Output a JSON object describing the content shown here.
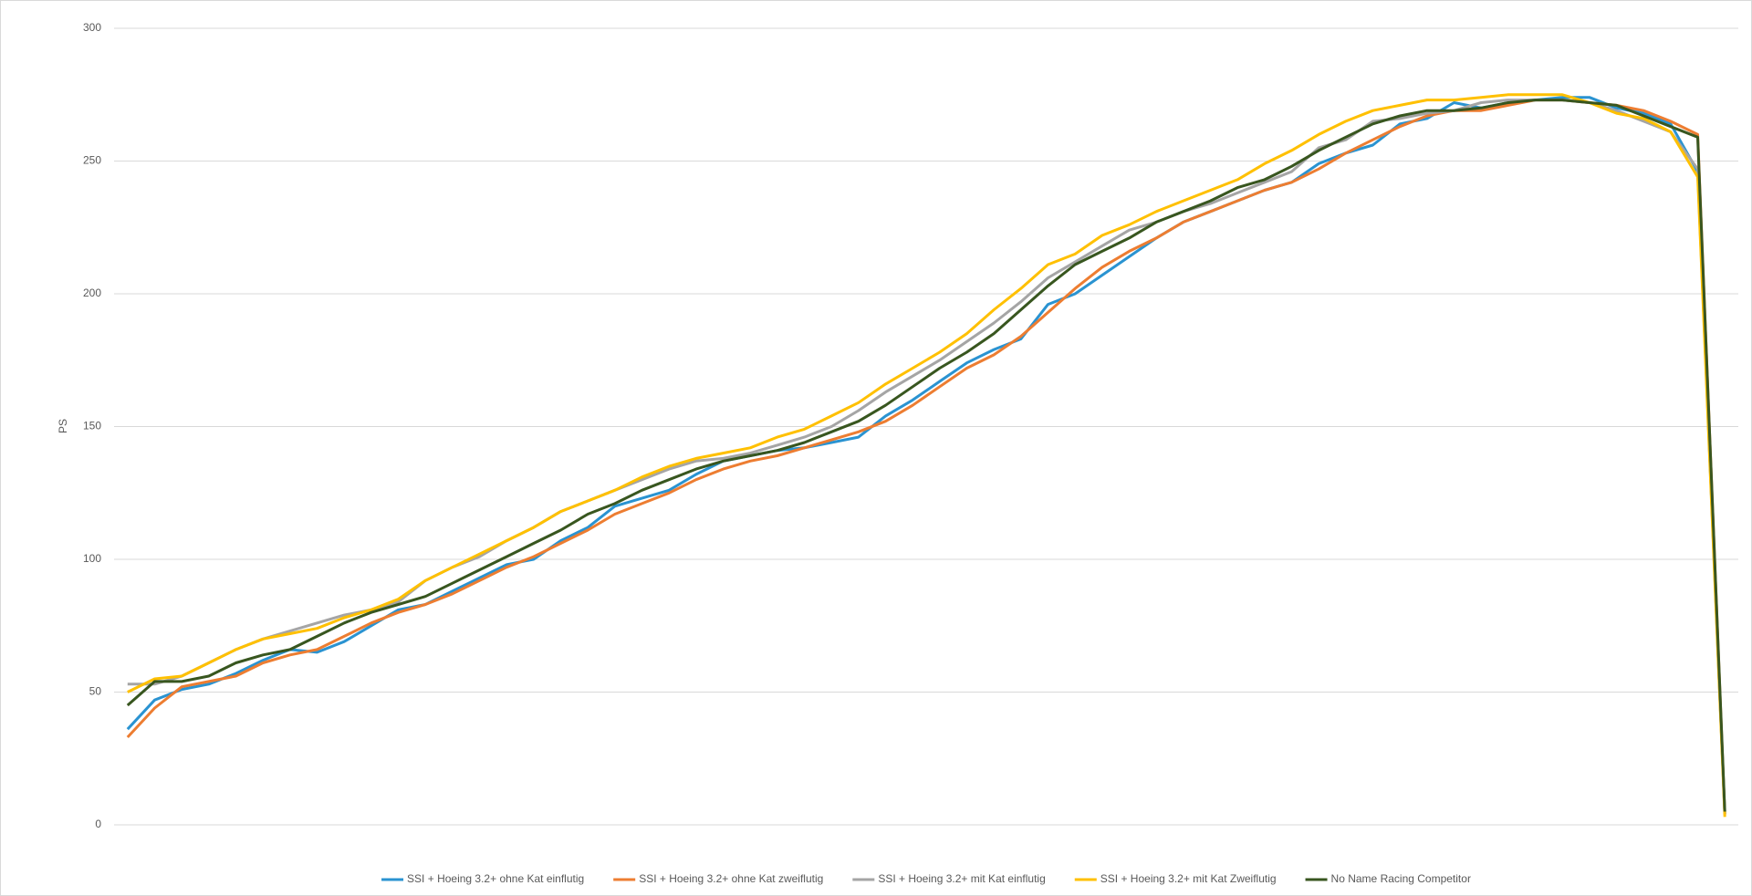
{
  "chart_data": {
    "type": "line",
    "y_label": "PS",
    "categories": [
      null,
      null,
      null,
      null,
      null,
      null,
      null,
      null,
      null,
      null,
      null,
      null,
      null,
      null,
      null,
      null,
      null,
      null,
      null,
      null,
      null,
      null,
      null,
      null,
      null,
      null,
      null,
      null,
      null,
      null,
      null,
      null,
      null,
      null,
      null,
      null,
      null,
      null,
      null,
      null,
      null,
      null,
      null,
      null,
      null,
      null,
      null,
      null,
      null,
      null,
      null,
      null,
      null,
      null,
      null,
      null,
      null,
      null,
      null,
      null
    ],
    "ylim": [
      0,
      300
    ],
    "yticks": [
      0,
      50,
      100,
      150,
      200,
      250,
      300
    ],
    "grid": true,
    "legend": "bottom",
    "series": [
      {
        "name": "SSI + Hoeing 3.2+ ohne Kat einflutig",
        "color": "#2a93d1",
        "values": [
          36,
          47,
          51,
          53,
          57,
          62,
          66,
          65,
          69,
          75,
          81,
          83,
          88,
          93,
          98,
          100,
          107,
          112,
          120,
          123,
          126,
          132,
          137,
          139,
          141,
          142,
          144,
          146,
          154,
          160,
          167,
          174,
          179,
          183,
          196,
          200,
          207,
          214,
          221,
          227,
          231,
          235,
          239,
          242,
          249,
          253,
          256,
          264,
          266,
          272,
          270,
          272,
          273,
          274,
          274,
          270,
          268,
          264,
          246,
          4
        ]
      },
      {
        "name": "SSI + Hoeing 3.2+ ohne Kat zweiflutig",
        "color": "#ed7d31",
        "values": [
          33,
          44,
          52,
          54,
          56,
          61,
          64,
          66,
          71,
          76,
          80,
          83,
          87,
          92,
          97,
          101,
          106,
          111,
          117,
          121,
          125,
          130,
          134,
          137,
          139,
          142,
          145,
          148,
          152,
          158,
          165,
          172,
          177,
          184,
          193,
          202,
          210,
          216,
          221,
          227,
          231,
          235,
          239,
          242,
          247,
          253,
          258,
          263,
          267,
          269,
          269,
          271,
          273,
          273,
          272,
          271,
          269,
          265,
          260,
          4
        ]
      },
      {
        "name": "SSI + Hoeing 3.2+ mit Kat einflutig",
        "color": "#a5a5a5",
        "values": [
          53,
          53,
          56,
          61,
          66,
          70,
          73,
          76,
          79,
          81,
          84,
          92,
          97,
          101,
          107,
          112,
          118,
          122,
          126,
          130,
          134,
          137,
          138,
          140,
          143,
          146,
          150,
          156,
          163,
          169,
          175,
          182,
          189,
          197,
          206,
          212,
          218,
          224,
          227,
          231,
          234,
          238,
          242,
          246,
          255,
          258,
          265,
          266,
          268,
          269,
          272,
          273,
          273,
          273,
          272,
          269,
          265,
          261,
          247,
          4
        ]
      },
      {
        "name": "SSI + Hoeing 3.2+ mit Kat Zweiflutig",
        "color": "#ffc000",
        "values": [
          50,
          55,
          56,
          61,
          66,
          70,
          72,
          74,
          78,
          81,
          85,
          92,
          97,
          102,
          107,
          112,
          118,
          122,
          126,
          131,
          135,
          138,
          140,
          142,
          146,
          149,
          154,
          159,
          166,
          172,
          178,
          185,
          194,
          202,
          211,
          215,
          222,
          226,
          231,
          235,
          239,
          243,
          249,
          254,
          260,
          265,
          269,
          271,
          273,
          273,
          274,
          275,
          275,
          275,
          272,
          268,
          266,
          261,
          244,
          3
        ]
      },
      {
        "name": "No Name Racing Competitor",
        "color": "#38561f",
        "values": [
          45,
          54,
          54,
          56,
          61,
          64,
          66,
          71,
          76,
          80,
          83,
          86,
          91,
          96,
          101,
          106,
          111,
          117,
          121,
          126,
          130,
          134,
          137,
          139,
          141,
          144,
          148,
          152,
          158,
          165,
          172,
          178,
          185,
          194,
          203,
          211,
          216,
          221,
          227,
          231,
          235,
          240,
          243,
          248,
          254,
          259,
          264,
          267,
          269,
          269,
          270,
          272,
          273,
          273,
          272,
          271,
          267,
          263,
          259,
          5
        ]
      }
    ]
  }
}
